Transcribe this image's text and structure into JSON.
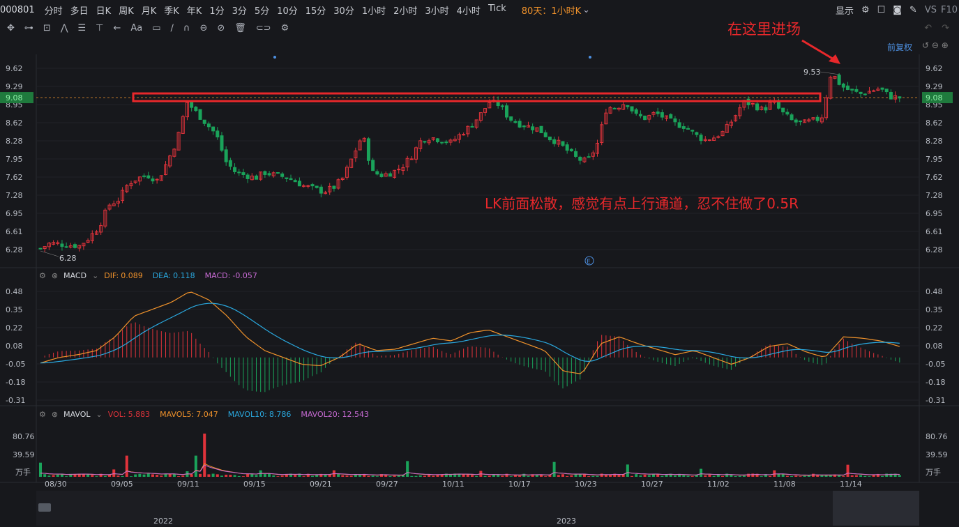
{
  "toolbar": {
    "code": "000801",
    "periods": [
      "分时",
      "多日",
      "日K",
      "周K",
      "月K",
      "季K",
      "年K",
      "1分",
      "3分",
      "5分",
      "10分",
      "15分",
      "30分",
      "1小时",
      "2小时",
      "3小时",
      "4小时",
      "Tick"
    ],
    "active_period": "80天：1小时K",
    "display": "显示",
    "vs": "VS",
    "f10": "F10",
    "fuquan": "前复权"
  },
  "annotations": {
    "entry": "在这里进场",
    "note": "LK前面松散，感觉有点上行通道，忍不住做了0.5R"
  },
  "price_panel": {
    "ticks": [
      "9.62",
      "9.29",
      "8.95",
      "8.62",
      "8.28",
      "7.95",
      "7.62",
      "7.28",
      "6.95",
      "6.61",
      "6.28"
    ],
    "current": "9.08",
    "high_label": "9.53",
    "low_label": "6.28",
    "event_marker": "E"
  },
  "macd": {
    "name": "MACD",
    "dif_label": "DIF:",
    "dif_value": "0.089",
    "dea_label": "DEA:",
    "dea_value": "0.118",
    "macd_label": "MACD:",
    "macd_value": "-0.057",
    "ticks": [
      "0.48",
      "0.35",
      "0.22",
      "0.08",
      "-0.05",
      "-0.18",
      "-0.31"
    ]
  },
  "mavol": {
    "name": "MAVOL",
    "vol_label": "VOL:",
    "vol_value": "5.883",
    "ma5_label": "MAVOL5:",
    "ma5_value": "7.047",
    "ma10_label": "MAVOL10:",
    "ma10_value": "8.786",
    "ma20_label": "MAVOL20:",
    "ma20_value": "12.543",
    "ticks": [
      "80.76",
      "39.59"
    ],
    "unit": "万手"
  },
  "dates": [
    "08/30",
    "09/05",
    "09/11",
    "09/15",
    "09/21",
    "09/27",
    "10/11",
    "10/17",
    "10/23",
    "10/27",
    "11/02",
    "11/08",
    "11/14"
  ],
  "navigator": {
    "years": [
      "2022",
      "2023"
    ]
  },
  "colors": {
    "up": "#e0333b",
    "down": "#1aa35a",
    "dif": "#f0922b",
    "dea": "#2aa9e0",
    "ma20": "#c86bd4",
    "label_red": "#e8282b"
  },
  "chart_data": {
    "type": "candlestick",
    "timeframe": "1小时K",
    "ylim": [
      6.28,
      9.62
    ],
    "high": 9.53,
    "low": 6.28,
    "last": 9.08,
    "key_level": 9.08,
    "close_path": [
      6.3,
      6.4,
      6.38,
      6.36,
      6.35,
      6.5,
      6.7,
      7.1,
      7.2,
      7.5,
      7.6,
      7.65,
      7.55,
      7.9,
      8.3,
      9.0,
      8.8,
      8.6,
      8.4,
      7.9,
      7.7,
      7.65,
      7.6,
      7.7,
      7.65,
      7.62,
      7.55,
      7.45,
      7.4,
      7.35,
      7.42,
      7.6,
      8.0,
      8.4,
      7.7,
      7.65,
      7.7,
      7.8,
      8.0,
      8.3,
      8.35,
      8.3,
      8.25,
      8.4,
      8.55,
      8.75,
      9.0,
      8.95,
      8.7,
      8.6,
      8.55,
      8.5,
      8.35,
      8.25,
      8.1,
      7.95,
      7.9,
      8.2,
      8.9,
      8.9,
      9.0,
      8.75,
      8.7,
      8.8,
      8.7,
      8.6,
      8.55,
      8.4,
      8.3,
      8.35,
      8.45,
      8.7,
      9.0,
      8.95,
      8.85,
      9.0,
      8.8,
      8.65,
      8.6,
      8.65,
      8.7,
      9.55,
      9.3,
      9.2,
      9.15,
      9.2,
      9.25,
      9.1,
      9.08
    ],
    "macd": {
      "dif_path": [
        -0.04,
        0.0,
        0.02,
        0.05,
        0.15,
        0.3,
        0.35,
        0.4,
        0.48,
        0.42,
        0.3,
        0.15,
        0.05,
        0.0,
        -0.05,
        -0.06,
        0.0,
        0.1,
        0.05,
        0.06,
        0.1,
        0.14,
        0.12,
        0.18,
        0.2,
        0.15,
        0.1,
        0.05,
        -0.1,
        -0.12,
        0.1,
        0.15,
        0.1,
        0.06,
        0.02,
        0.05,
        0.0,
        -0.05,
        0.0,
        0.08,
        0.1,
        0.04,
        0.0,
        0.15,
        0.14,
        0.12,
        0.08
      ]
    },
    "volume_peaks": [
      80.76,
      39.59
    ]
  }
}
